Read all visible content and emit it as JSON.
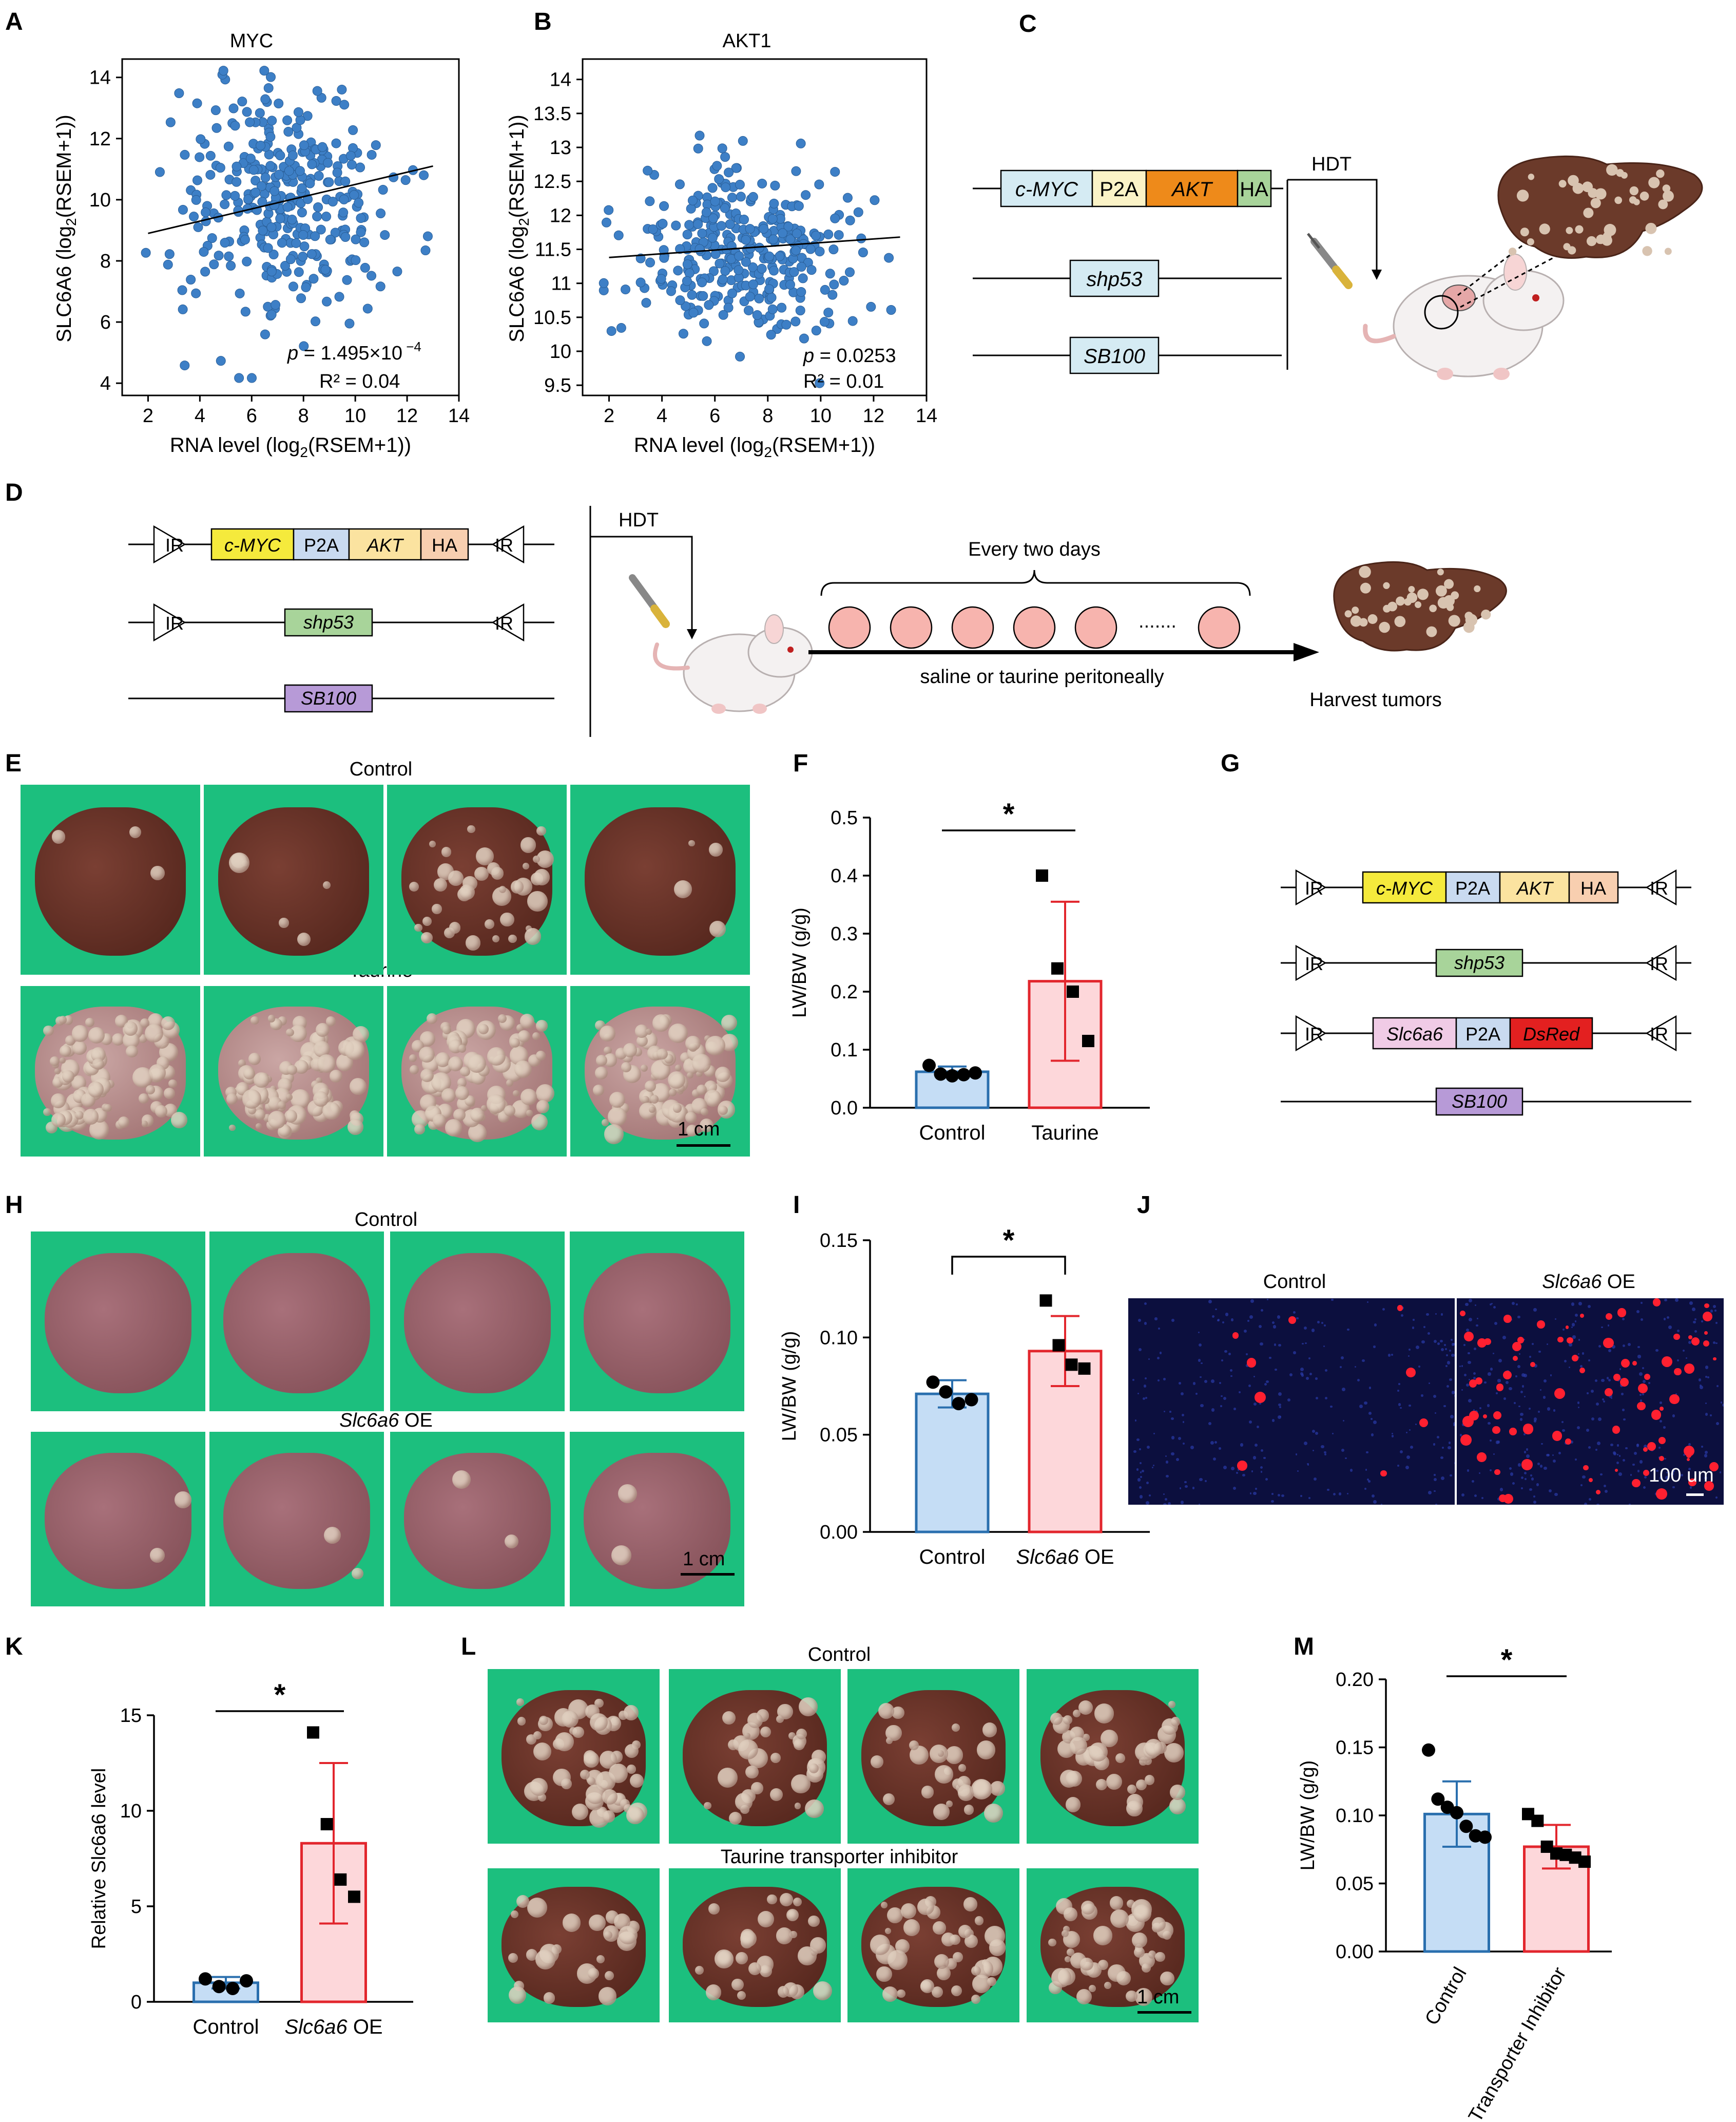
{
  "panels": {
    "A": "A",
    "B": "B",
    "C": "C",
    "D": "D",
    "E": "E",
    "F": "F",
    "G": "G",
    "H": "H",
    "I": "I",
    "J": "J",
    "K": "K",
    "L": "L",
    "M": "M"
  },
  "colors": {
    "scatter_dot": "#3d7fc6",
    "control_fill": "#c5ddf5",
    "control_edge": "#2a6fae",
    "treat_fill": "#fdd7da",
    "treat_edge": "#e2262d",
    "myc_box": "#d5ebf3",
    "p2a_box": "#fbf3c7",
    "akt_box": "#ee8a1a",
    "ha_box": "#a8d49a"
  },
  "constructs_c": {
    "myc": "c-MYC",
    "p2a": "P2A",
    "akt": "AKT",
    "ha": "HA",
    "shp53": "shp53",
    "sb100": "SB100",
    "hdt": "HDT"
  },
  "constructs_d": {
    "ir": "IR",
    "myc": "c-MYC",
    "p2a": "P2A",
    "akt": "AKT",
    "ha": "HA",
    "shp53": "shp53",
    "sb100": "SB100",
    "hdt": "HDT",
    "every_two_days": "Every two days",
    "dots": ".......",
    "route": "saline or taurine peritoneally",
    "harvest": "Harvest tumors"
  },
  "constructs_g": {
    "ir": "IR",
    "myc": "c-MYC",
    "p2a": "P2A",
    "akt": "AKT",
    "ha": "HA",
    "shp53": "shp53",
    "slc": "Slc6a6",
    "dsred": "DsRed",
    "sb100": "SB100"
  },
  "photo_e": {
    "top": "Control",
    "bottom": "Taurine",
    "scale": "1 cm"
  },
  "photo_h": {
    "top": "Control",
    "bottom_it": "Slc6a6",
    "bottom_rest": " OE",
    "scale": "1 cm"
  },
  "photo_j": {
    "left": "Control",
    "right_it": "Slc6a6",
    "right_rest": " OE",
    "scale": "100 um"
  },
  "photo_l": {
    "top": "Control",
    "bottom": "Taurine transporter inhibitor",
    "scale": "1 cm"
  },
  "chart_data": [
    {
      "panel": "A",
      "type": "scatter",
      "title": "MYC",
      "xlabel_pre": "RNA level (log",
      "xlabel_sub": "2",
      "xlabel_post": "(RSEM+1))",
      "ylabel_pre": "SLC6A6  (log",
      "ylabel_sub": "2",
      "ylabel_post": "(RSEM+1))",
      "xlim": [
        1,
        14
      ],
      "ylim": [
        3.6,
        14.6
      ],
      "xticks": [
        2,
        4,
        6,
        8,
        10,
        12,
        14
      ],
      "yticks": [
        4,
        6,
        8,
        10,
        12,
        14
      ],
      "fit": {
        "x": [
          2,
          13
        ],
        "y": [
          8.9,
          11.1
        ]
      },
      "p_label": "p",
      "p_value": " = 1.495×10",
      "p_exp": " −4",
      "r2": "R² = 0.04",
      "n_points": 330,
      "x_mean": 7.2,
      "x_sd": 2.0,
      "y_mean": 10.0,
      "y_sd": 1.9
    },
    {
      "panel": "B",
      "type": "scatter",
      "title": "AKT1",
      "xlabel_pre": "RNA level (log",
      "xlabel_sub": "2",
      "xlabel_post": "(RSEM+1))",
      "ylabel_pre": "SLC6A6  (log",
      "ylabel_sub": "2",
      "ylabel_post": "(RSEM+1))",
      "xlim": [
        1,
        14
      ],
      "ylim": [
        9.35,
        14.3
      ],
      "xticks": [
        2,
        4,
        6,
        8,
        10,
        12,
        14
      ],
      "yticks": [
        9.5,
        10,
        10.5,
        11,
        11.5,
        12,
        12.5,
        13,
        13.5,
        14
      ],
      "fit": {
        "x": [
          2,
          13
        ],
        "y": [
          11.38,
          11.68
        ]
      },
      "p_label": "p",
      "p_value": " = 0.0253",
      "p_exp": "",
      "r2": "R² = 0.01",
      "n_points": 330,
      "x_mean": 7.2,
      "x_sd": 2.0,
      "y_mean": 11.5,
      "y_sd": 0.6
    },
    {
      "panel": "F",
      "type": "bar",
      "ylabel": "LW/BW (g/g)",
      "ylim": [
        0,
        0.5
      ],
      "yticks": [
        0.0,
        0.1,
        0.2,
        0.3,
        0.4,
        0.5
      ],
      "categories": [
        "Control",
        "Taurine"
      ],
      "means": [
        0.062,
        0.218
      ],
      "sd": [
        0.009,
        0.137
      ],
      "points": [
        [
          0.073,
          0.058,
          0.055,
          0.057,
          0.06
        ],
        [
          0.4,
          0.24,
          0.2,
          0.115
        ]
      ],
      "markers": [
        "circle",
        "square"
      ],
      "sig": "*"
    },
    {
      "panel": "I",
      "type": "bar",
      "ylabel": "LW/BW (g/g)",
      "ylim": [
        0,
        0.15
      ],
      "yticks": [
        0.0,
        0.05,
        0.1,
        0.15
      ],
      "categories": [
        "Control",
        "Slc6a6 OE"
      ],
      "means": [
        0.071,
        0.093
      ],
      "sd": [
        0.007,
        0.018
      ],
      "points": [
        [
          0.077,
          0.072,
          0.066,
          0.068
        ],
        [
          0.119,
          0.096,
          0.086,
          0.084
        ]
      ],
      "markers": [
        "circle",
        "square"
      ],
      "sig": "*"
    },
    {
      "panel": "K",
      "type": "bar",
      "ylabel": "Relative Slc6a6 level",
      "ylim": [
        0,
        15
      ],
      "yticks": [
        0,
        5,
        10,
        15
      ],
      "categories": [
        "Control",
        "Slc6a6 OE"
      ],
      "means": [
        1.0,
        8.3
      ],
      "sd": [
        0.3,
        4.2
      ],
      "points": [
        [
          1.2,
          0.8,
          0.7,
          1.1
        ],
        [
          14.1,
          9.3,
          6.4,
          5.5
        ]
      ],
      "markers": [
        "circle",
        "square"
      ],
      "sig": "*"
    },
    {
      "panel": "M",
      "type": "bar",
      "ylabel": "LW/BW (g/g)",
      "ylim": [
        0,
        0.2
      ],
      "yticks": [
        0.0,
        0.05,
        0.1,
        0.15,
        0.2
      ],
      "categories": [
        "Control",
        "Transporter Inhibitor"
      ],
      "means": [
        0.101,
        0.077
      ],
      "sd": [
        0.024,
        0.016
      ],
      "points": [
        [
          0.148,
          0.112,
          0.106,
          0.102,
          0.092,
          0.085,
          0.084
        ],
        [
          0.101,
          0.096,
          0.077,
          0.072,
          0.071,
          0.069,
          0.066
        ]
      ],
      "markers": [
        "circle",
        "square"
      ],
      "sig": "*"
    }
  ]
}
